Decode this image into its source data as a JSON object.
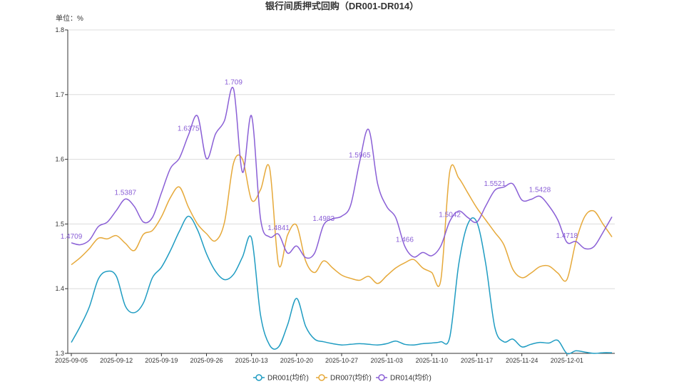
{
  "chart_data": {
    "type": "line",
    "title": "银行间质押式回购（DR001-DR014）",
    "ylabel_unit": "单位：%",
    "ylim": [
      1.3,
      1.8
    ],
    "yticks": [
      "1.3",
      "1.4",
      "1.5",
      "1.6",
      "1.7",
      "1.8"
    ],
    "grid": true,
    "legend_position": "bottom-center",
    "x_labels": [
      "2025-09-05",
      "2025-09-12",
      "2025-09-19",
      "2025-09-26",
      "2025-10-13",
      "2025-10-20",
      "2025-10-27",
      "2025-11-03",
      "2025-11-10",
      "2025-11-17",
      "2025-11-24",
      "2025-12-01"
    ],
    "x_label_index": [
      0,
      5,
      10,
      15,
      20,
      25,
      30,
      35,
      40,
      45,
      50,
      55
    ],
    "n_points": 61,
    "series": [
      {
        "name": "DR001(均价)",
        "color": "#1f9cc2",
        "values": [
          1.317,
          1.342,
          1.372,
          1.415,
          1.427,
          1.419,
          1.373,
          1.363,
          1.378,
          1.417,
          1.433,
          1.459,
          1.489,
          1.512,
          1.491,
          1.454,
          1.427,
          1.414,
          1.422,
          1.449,
          1.478,
          1.359,
          1.313,
          1.31,
          1.344,
          1.385,
          1.342,
          1.322,
          1.318,
          1.315,
          1.313,
          1.314,
          1.315,
          1.314,
          1.313,
          1.315,
          1.319,
          1.314,
          1.313,
          1.315,
          1.316,
          1.318,
          1.325,
          1.438,
          1.5,
          1.503,
          1.438,
          1.34,
          1.318,
          1.322,
          1.31,
          1.314,
          1.317,
          1.316,
          1.32,
          1.3,
          1.304,
          1.302,
          1.3,
          1.301,
          1.301
        ]
      },
      {
        "name": "DR007(均价)",
        "color": "#e6a93a",
        "values": [
          1.437,
          1.448,
          1.462,
          1.478,
          1.477,
          1.482,
          1.47,
          1.459,
          1.484,
          1.49,
          1.511,
          1.541,
          1.557,
          1.526,
          1.5,
          1.485,
          1.474,
          1.503,
          1.594,
          1.6,
          1.537,
          1.553,
          1.587,
          1.437,
          1.483,
          1.498,
          1.443,
          1.425,
          1.443,
          1.432,
          1.421,
          1.416,
          1.413,
          1.419,
          1.408,
          1.42,
          1.432,
          1.44,
          1.445,
          1.432,
          1.425,
          1.413,
          1.581,
          1.571,
          1.548,
          1.525,
          1.506,
          1.487,
          1.468,
          1.43,
          1.417,
          1.424,
          1.434,
          1.435,
          1.424,
          1.414,
          1.473,
          1.512,
          1.52,
          1.5,
          1.48
        ]
      },
      {
        "name": "DR014(均价)",
        "color": "#8a5fd6",
        "values": [
          1.4709,
          1.468,
          1.475,
          1.496,
          1.503,
          1.521,
          1.5387,
          1.527,
          1.503,
          1.51,
          1.548,
          1.586,
          1.602,
          1.6375,
          1.667,
          1.601,
          1.639,
          1.66,
          1.709,
          1.58,
          1.667,
          1.508,
          1.48,
          1.4841,
          1.455,
          1.466,
          1.448,
          1.455,
          1.4983,
          1.508,
          1.512,
          1.529,
          1.5965,
          1.646,
          1.562,
          1.527,
          1.51,
          1.466,
          1.449,
          1.456,
          1.451,
          1.466,
          1.5042,
          1.52,
          1.51,
          1.503,
          1.528,
          1.5521,
          1.557,
          1.562,
          1.537,
          1.538,
          1.5428,
          1.528,
          1.506,
          1.4718,
          1.473,
          1.462,
          1.465,
          1.487,
          1.511
        ]
      }
    ],
    "data_labels": [
      {
        "text": "1.4709",
        "index": 0,
        "value": 1.4709
      },
      {
        "text": "1.5387",
        "index": 6,
        "value": 1.5387
      },
      {
        "text": "1.6375",
        "index": 13,
        "value": 1.6375
      },
      {
        "text": "1.709",
        "index": 18,
        "value": 1.709
      },
      {
        "text": "1.4841",
        "index": 23,
        "value": 1.4841
      },
      {
        "text": "1.4983",
        "index": 28,
        "value": 1.4983
      },
      {
        "text": "1.5965",
        "index": 32,
        "value": 1.5965
      },
      {
        "text": "1.466",
        "index": 37,
        "value": 1.466
      },
      {
        "text": "1.5042",
        "index": 42,
        "value": 1.5042
      },
      {
        "text": "1.5521",
        "index": 47,
        "value": 1.5521
      },
      {
        "text": "1.5428",
        "index": 52,
        "value": 1.5428
      },
      {
        "text": "1.4718",
        "index": 55,
        "value": 1.4718
      }
    ]
  }
}
